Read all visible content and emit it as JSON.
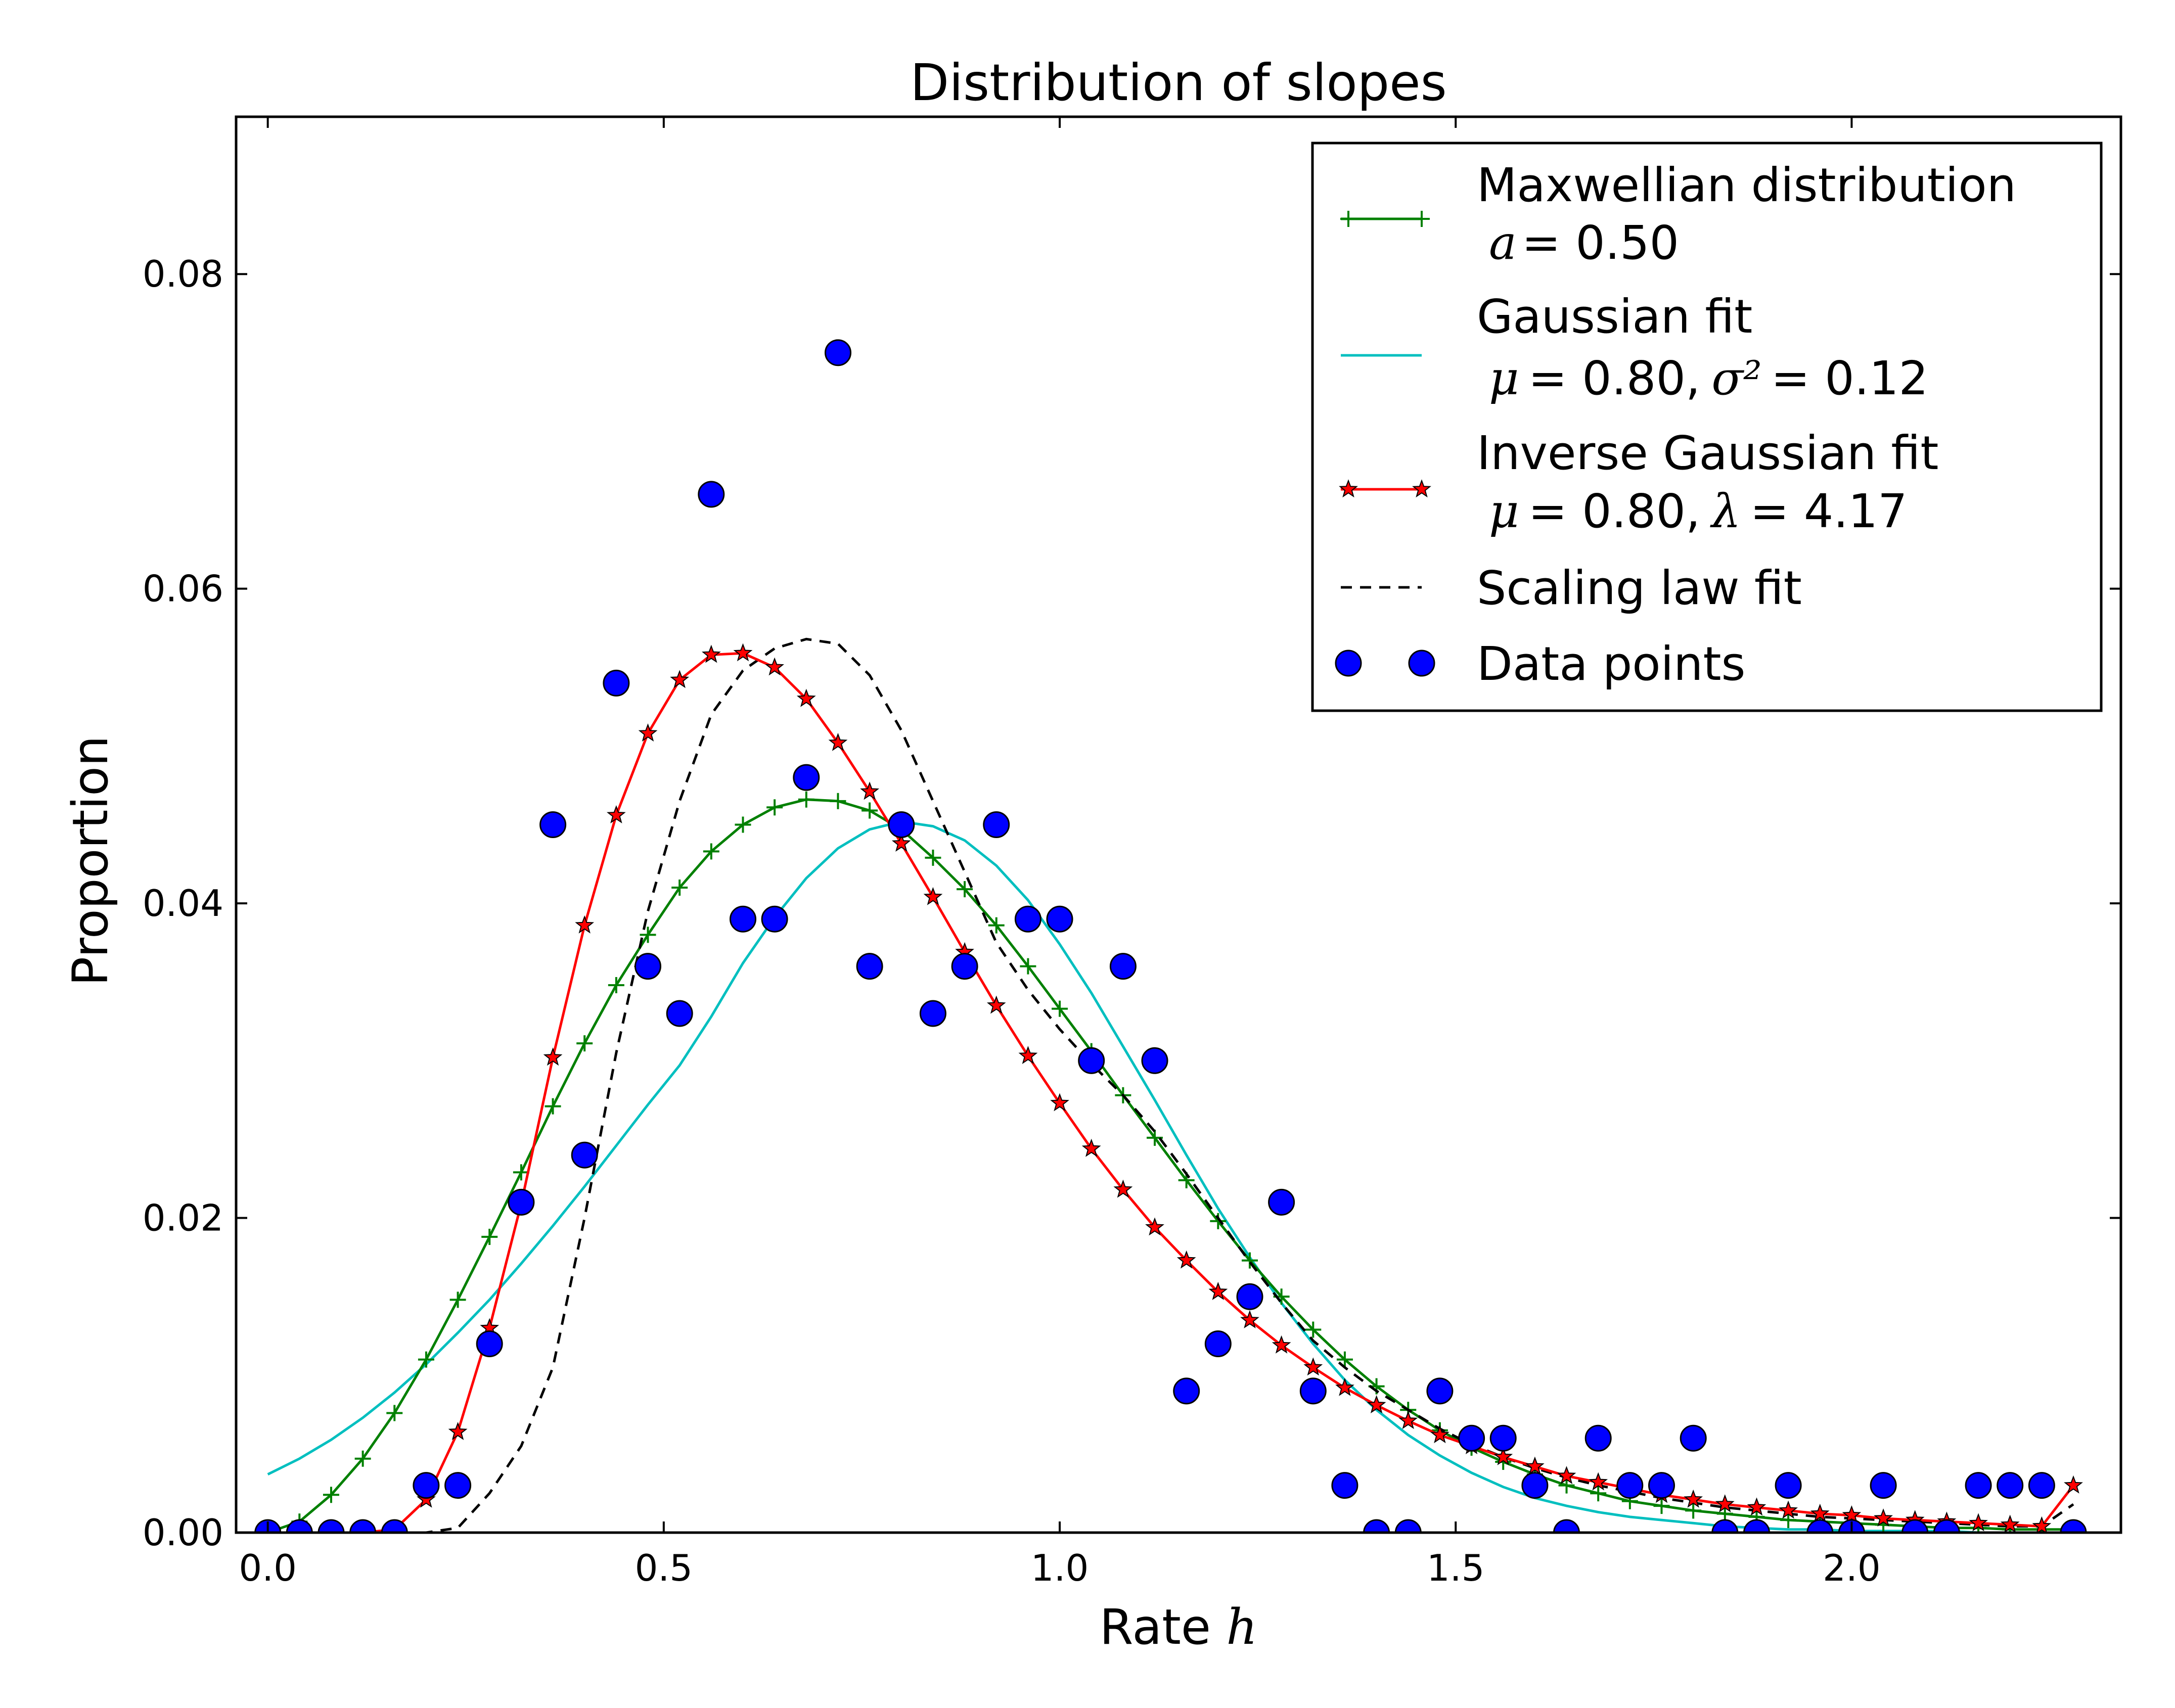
{
  "chart_data": {
    "type": "line",
    "title": "Distribution of slopes",
    "xlabel": "Rate",
    "xlabel_var": "h",
    "ylabel": "Proportion",
    "xlim": [
      -0.04,
      2.34
    ],
    "ylim": [
      0.0,
      0.09
    ],
    "x_ticks": [
      0.0,
      0.5,
      1.0,
      1.5,
      2.0
    ],
    "x_tick_labels": [
      "0.0",
      "0.5",
      "1.0",
      "1.5",
      "2.0"
    ],
    "y_ticks": [
      0.0,
      0.02,
      0.04,
      0.06,
      0.08
    ],
    "y_tick_labels": [
      "0.00",
      "0.02",
      "0.04",
      "0.06",
      "0.08"
    ],
    "grid": false,
    "legend_position": "top-right",
    "series": [
      {
        "name": "Maxwellian distribution",
        "legend_line2": {
          "symbol": "a",
          "text": "= 0.50"
        },
        "style": "line-plus",
        "color": "#008000",
        "x": [
          0.0,
          0.04,
          0.08,
          0.12,
          0.16,
          0.2,
          0.24,
          0.28,
          0.32,
          0.36,
          0.4,
          0.44,
          0.48,
          0.52,
          0.56,
          0.6,
          0.64,
          0.68,
          0.72,
          0.76,
          0.8,
          0.84,
          0.88,
          0.92,
          0.96,
          1.0,
          1.04,
          1.08,
          1.12,
          1.16,
          1.2,
          1.24,
          1.28,
          1.32,
          1.36,
          1.4,
          1.44,
          1.48,
          1.52,
          1.56,
          1.6,
          1.64,
          1.68,
          1.72,
          1.76,
          1.8,
          1.84,
          1.88,
          1.92,
          1.96,
          2.0,
          2.04,
          2.08,
          2.12,
          2.16,
          2.2,
          2.24,
          2.28
        ],
        "values": [
          0.0,
          0.0007,
          0.0024,
          0.0047,
          0.0076,
          0.011,
          0.0148,
          0.0188,
          0.0229,
          0.0271,
          0.0311,
          0.0348,
          0.038,
          0.041,
          0.0433,
          0.045,
          0.0461,
          0.0466,
          0.0465,
          0.0459,
          0.0447,
          0.0429,
          0.0409,
          0.0386,
          0.036,
          0.0333,
          0.0306,
          0.0278,
          0.0251,
          0.0224,
          0.0198,
          0.0173,
          0.015,
          0.0129,
          0.011,
          0.0093,
          0.0078,
          0.0065,
          0.0054,
          0.0045,
          0.0037,
          0.003,
          0.0025,
          0.002,
          0.0017,
          0.0014,
          0.0012,
          0.001,
          0.0008,
          0.0007,
          0.0006,
          0.0005,
          0.0004,
          0.0003,
          0.0003,
          0.0002,
          0.0002,
          0.0002
        ]
      },
      {
        "name": "Gaussian fit",
        "legend_line2": {
          "mu": "μ",
          "mu_text": "=  0.80,",
          "sigma": "σ²",
          "sigma_text": "= 0.12"
        },
        "style": "line",
        "color": "#00bfbf",
        "x": [
          0.0,
          0.04,
          0.08,
          0.12,
          0.16,
          0.2,
          0.24,
          0.28,
          0.32,
          0.36,
          0.4,
          0.44,
          0.48,
          0.52,
          0.56,
          0.6,
          0.64,
          0.68,
          0.72,
          0.76,
          0.8,
          0.84,
          0.88,
          0.92,
          0.96,
          1.0,
          1.04,
          1.08,
          1.12,
          1.16,
          1.2,
          1.24,
          1.28,
          1.32,
          1.36,
          1.4,
          1.44,
          1.48,
          1.52,
          1.56,
          1.6,
          1.64,
          1.68,
          1.72,
          1.76,
          1.8,
          1.84,
          1.88,
          1.92,
          1.96,
          2.0,
          2.04,
          2.08,
          2.12,
          2.16,
          2.2,
          2.24,
          2.28
        ],
        "values": [
          0.0037,
          0.0047,
          0.0059,
          0.0073,
          0.0089,
          0.0107,
          0.0127,
          0.0148,
          0.0171,
          0.0195,
          0.022,
          0.0246,
          0.0272,
          0.0297,
          0.0328,
          0.0362,
          0.0391,
          0.0416,
          0.0435,
          0.0447,
          0.0452,
          0.0449,
          0.044,
          0.0424,
          0.0402,
          0.0374,
          0.0343,
          0.0309,
          0.0275,
          0.024,
          0.0206,
          0.0175,
          0.0146,
          0.012,
          0.0097,
          0.0078,
          0.0062,
          0.0049,
          0.0038,
          0.0029,
          0.0022,
          0.0017,
          0.0013,
          0.001,
          0.0008,
          0.0006,
          0.0004,
          0.0003,
          0.0002,
          0.0002,
          0.0001,
          0.0001,
          0.0001,
          0.0001,
          0.0,
          0.0,
          0.0,
          0.0
        ]
      },
      {
        "name": "Inverse Gaussian fit",
        "legend_line2": {
          "mu": "μ",
          "mu_text": "=  0.80,",
          "lambda": "λ",
          "lambda_text": "= 4.17"
        },
        "style": "line-star",
        "color": "#ff0000",
        "x": [
          0.0,
          0.04,
          0.08,
          0.12,
          0.16,
          0.2,
          0.24,
          0.28,
          0.32,
          0.36,
          0.4,
          0.44,
          0.48,
          0.52,
          0.56,
          0.6,
          0.64,
          0.68,
          0.72,
          0.76,
          0.8,
          0.84,
          0.88,
          0.92,
          0.96,
          1.0,
          1.04,
          1.08,
          1.12,
          1.16,
          1.2,
          1.24,
          1.28,
          1.32,
          1.36,
          1.4,
          1.44,
          1.48,
          1.52,
          1.56,
          1.6,
          1.64,
          1.68,
          1.72,
          1.76,
          1.8,
          1.84,
          1.88,
          1.92,
          1.96,
          2.0,
          2.04,
          2.08,
          2.12,
          2.16,
          2.2,
          2.24,
          2.28
        ],
        "values": [
          0.0,
          0.0,
          0.0,
          0.0,
          0.0002,
          0.0021,
          0.0064,
          0.013,
          0.0209,
          0.0302,
          0.0386,
          0.0456,
          0.0508,
          0.0542,
          0.0558,
          0.0559,
          0.055,
          0.053,
          0.0502,
          0.0471,
          0.0438,
          0.0404,
          0.0369,
          0.0335,
          0.0303,
          0.0273,
          0.0244,
          0.0218,
          0.0194,
          0.0173,
          0.0153,
          0.0135,
          0.0119,
          0.0105,
          0.0092,
          0.0081,
          0.0071,
          0.0062,
          0.0055,
          0.0048,
          0.0042,
          0.0036,
          0.0032,
          0.0028,
          0.0024,
          0.0021,
          0.0018,
          0.0016,
          0.0014,
          0.0012,
          0.0011,
          0.0009,
          0.0008,
          0.0007,
          0.0006,
          0.0005,
          0.0004,
          0.003
        ]
      },
      {
        "name": "Scaling law fit",
        "style": "dashed",
        "color": "#000000",
        "x": [
          0.0,
          0.04,
          0.08,
          0.12,
          0.16,
          0.2,
          0.24,
          0.28,
          0.32,
          0.36,
          0.4,
          0.44,
          0.48,
          0.52,
          0.56,
          0.6,
          0.64,
          0.68,
          0.72,
          0.76,
          0.8,
          0.84,
          0.88,
          0.92,
          0.96,
          1.0,
          1.04,
          1.08,
          1.12,
          1.16,
          1.2,
          1.24,
          1.28,
          1.32,
          1.36,
          1.4,
          1.44,
          1.48,
          1.52,
          1.56,
          1.6,
          1.64,
          1.68,
          1.72,
          1.76,
          1.8,
          1.84,
          1.88,
          1.92,
          1.96,
          2.0,
          2.04,
          2.08,
          2.12,
          2.16,
          2.2,
          2.24,
          2.28
        ],
        "values": [
          0.0,
          0.0,
          0.0,
          0.0,
          0.0,
          0.0,
          0.0003,
          0.0025,
          0.0055,
          0.0105,
          0.02,
          0.0305,
          0.0395,
          0.0465,
          0.052,
          0.0548,
          0.0562,
          0.0568,
          0.0565,
          0.0545,
          0.051,
          0.0465,
          0.042,
          0.0375,
          0.0345,
          0.032,
          0.0298,
          0.0278,
          0.0255,
          0.0228,
          0.02,
          0.0172,
          0.0146,
          0.0122,
          0.0105,
          0.009,
          0.0078,
          0.0066,
          0.0056,
          0.0048,
          0.0041,
          0.0035,
          0.003,
          0.0026,
          0.0022,
          0.0019,
          0.0016,
          0.0014,
          0.0012,
          0.001,
          0.0009,
          0.0008,
          0.0007,
          0.0006,
          0.0005,
          0.0004,
          0.0004,
          0.0018
        ]
      },
      {
        "name": "Data points",
        "style": "markers",
        "color": "#0000ff",
        "x": [
          0.0,
          0.04,
          0.08,
          0.12,
          0.16,
          0.2,
          0.24,
          0.28,
          0.32,
          0.36,
          0.4,
          0.44,
          0.48,
          0.52,
          0.56,
          0.6,
          0.64,
          0.68,
          0.72,
          0.76,
          0.8,
          0.84,
          0.88,
          0.92,
          0.96,
          1.0,
          1.04,
          1.08,
          1.12,
          1.16,
          1.2,
          1.24,
          1.28,
          1.32,
          1.36,
          1.4,
          1.44,
          1.48,
          1.52,
          1.56,
          1.6,
          1.64,
          1.68,
          1.72,
          1.76,
          1.8,
          1.84,
          1.88,
          1.92,
          1.96,
          2.0,
          2.04,
          2.08,
          2.12,
          2.16,
          2.2,
          2.24,
          2.28
        ],
        "values": [
          0.0,
          0.0,
          0.0,
          0.0,
          0.0,
          0.003,
          0.003,
          0.012,
          0.021,
          0.045,
          0.024,
          0.054,
          0.036,
          0.033,
          0.066,
          0.039,
          0.039,
          0.048,
          0.075,
          0.036,
          0.045,
          0.033,
          0.036,
          0.045,
          0.039,
          0.039,
          0.03,
          0.036,
          0.03,
          0.009,
          0.012,
          0.015,
          0.021,
          0.009,
          0.003,
          0.0,
          0.0,
          0.009,
          0.006,
          0.006,
          0.003,
          0.0,
          0.006,
          0.003,
          0.003,
          0.006,
          0.0,
          0.0,
          0.003,
          0.0,
          0.0,
          0.003,
          0.0,
          0.0,
          0.003,
          0.003,
          0.003,
          0.0
        ]
      }
    ]
  },
  "colors": {
    "background": "#ffffff",
    "axes": "#000000",
    "maxwell": "#008000",
    "gaussian": "#00bfbf",
    "inverse_gaussian": "#ff0000",
    "scaling": "#000000",
    "data": "#0000ff"
  }
}
